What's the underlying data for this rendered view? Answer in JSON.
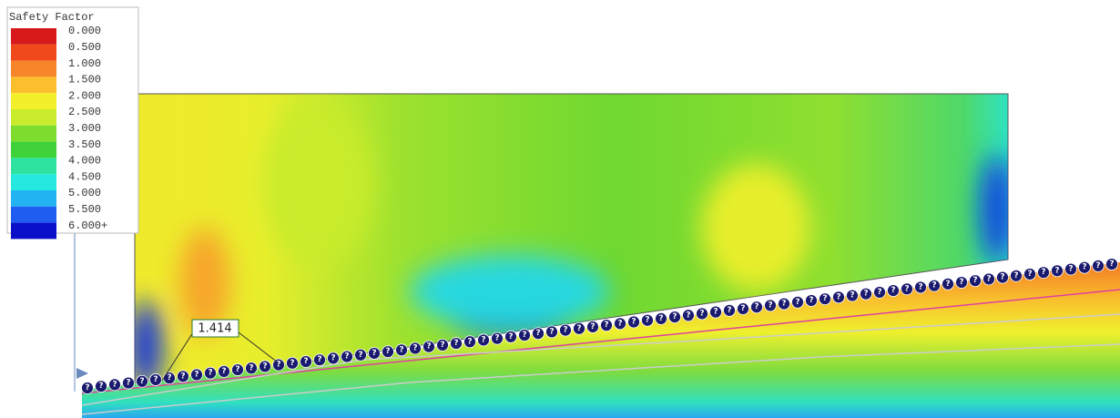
{
  "legend": {
    "title": "Safety Factor",
    "items": [
      {
        "label": "0.000",
        "color": "#d7191c"
      },
      {
        "label": "0.500",
        "color": "#f04a1c"
      },
      {
        "label": "1.000",
        "color": "#f7852a"
      },
      {
        "label": "1.500",
        "color": "#fbbf2e"
      },
      {
        "label": "2.000",
        "color": "#f3ef2a"
      },
      {
        "label": "2.500",
        "color": "#c8ec2c"
      },
      {
        "label": "3.000",
        "color": "#7edc2f"
      },
      {
        "label": "3.500",
        "color": "#3fd13a"
      },
      {
        "label": "4.000",
        "color": "#2ee3a0"
      },
      {
        "label": "4.500",
        "color": "#25e8e0"
      },
      {
        "label": "5.000",
        "color": "#22b3f2"
      },
      {
        "label": "5.500",
        "color": "#1f5cf0"
      },
      {
        "label": "6.000+",
        "color": "#0a0fc8"
      }
    ]
  },
  "annotation": "1.414",
  "marker_symbol": "?"
}
